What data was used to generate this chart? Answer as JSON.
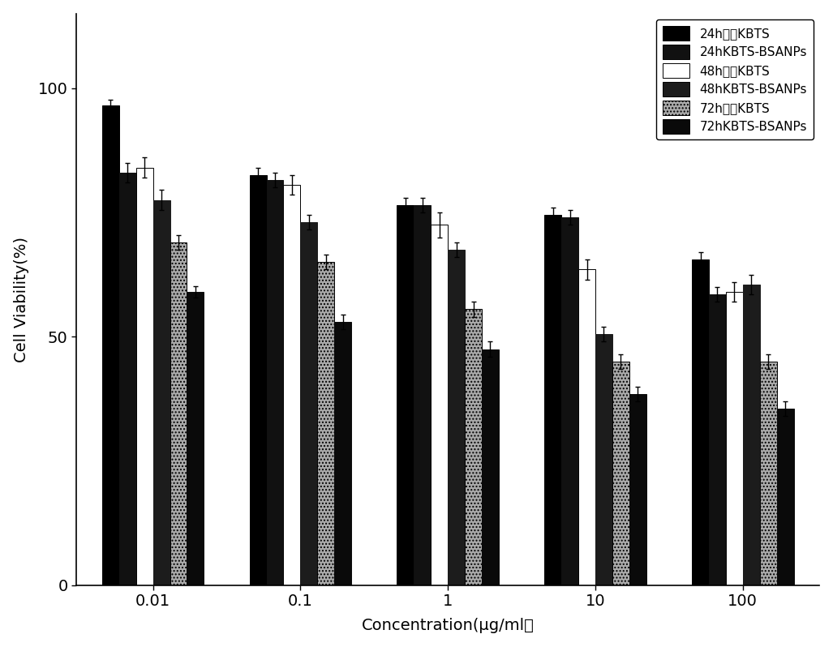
{
  "concentrations": [
    0.01,
    0.1,
    1,
    10,
    100
  ],
  "series": {
    "24h_free_KBTS": {
      "values": [
        96.5,
        82.5,
        76.5,
        74.5,
        65.5
      ],
      "errors": [
        1.2,
        1.5,
        1.5,
        1.5,
        1.5
      ],
      "color": "#000000",
      "label": "24h游离KBTS",
      "hatch": null,
      "edgecolor": "#000000"
    },
    "24h_KBTS_BSANPs": {
      "values": [
        83.0,
        81.5,
        76.5,
        74.0,
        58.5
      ],
      "errors": [
        2.0,
        1.5,
        1.5,
        1.5,
        1.5
      ],
      "color": "#111111",
      "label": "24hKBTS-BSANPs",
      "hatch": null,
      "edgecolor": "#111111"
    },
    "48h_free_KBTS": {
      "values": [
        84.0,
        80.5,
        72.5,
        63.5,
        59.0
      ],
      "errors": [
        2.0,
        2.0,
        2.5,
        2.0,
        2.0
      ],
      "color": "#ffffff",
      "label": "48h游离KBTS",
      "hatch": null,
      "edgecolor": "#000000"
    },
    "48h_KBTS_BSANPs": {
      "values": [
        77.5,
        73.0,
        67.5,
        50.5,
        60.5
      ],
      "errors": [
        2.0,
        1.5,
        1.5,
        1.5,
        2.0
      ],
      "color": "#1c1c1c",
      "label": "48hKBTS-BSANPs",
      "hatch": null,
      "edgecolor": "#1c1c1c"
    },
    "72h_free_KBTS": {
      "values": [
        69.0,
        65.0,
        55.5,
        45.0,
        45.0
      ],
      "errors": [
        1.5,
        1.5,
        1.5,
        1.5,
        1.5
      ],
      "color": "#aaaaaa",
      "label": "72h游离KBTS",
      "hatch": "....",
      "edgecolor": "#000000"
    },
    "72h_KBTS_BSANPs": {
      "values": [
        59.0,
        53.0,
        47.5,
        38.5,
        35.5
      ],
      "errors": [
        1.2,
        1.5,
        1.5,
        1.5,
        1.5
      ],
      "color": "#0a0a0a",
      "label": "72hKBTS-BSANPs",
      "hatch": null,
      "edgecolor": "#0a0a0a"
    }
  },
  "xlabel": "Concentration(μg/ml）",
  "ylabel": "Cell Viability(%)",
  "ylim": [
    0,
    115
  ],
  "yticks": [
    0,
    50,
    100
  ],
  "background_color": "#ffffff",
  "bar_width": 0.115,
  "figsize": [
    10.27,
    7.98
  ],
  "dpi": 100
}
